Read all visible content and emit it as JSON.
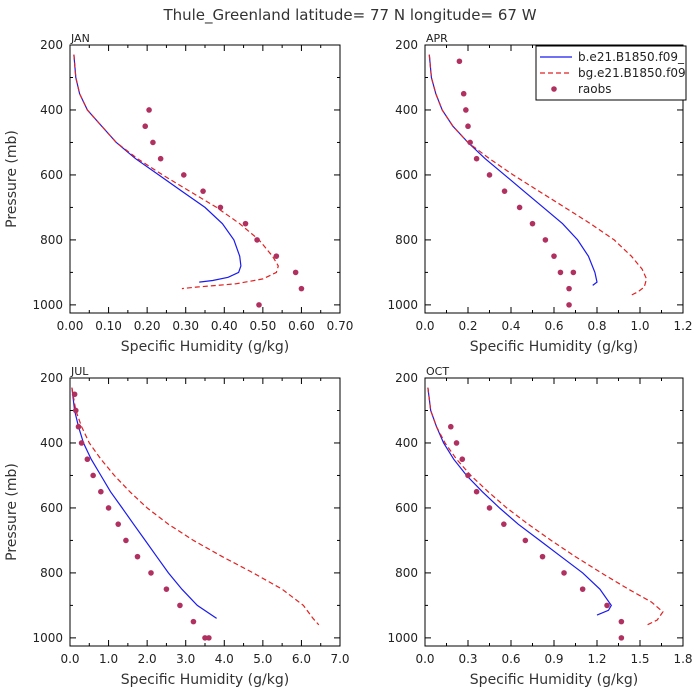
{
  "title": "Thule_Greenland  latitude= 77 N longitude= 67 W",
  "colors": {
    "model1": "#1a1aee",
    "model2": "#e22020",
    "obs": "#b03060"
  },
  "legend": [
    {
      "label": "b.e21.B1850.f09_",
      "style": "solid",
      "color": "#1a1aee"
    },
    {
      "label": "bg.e21.B1850.f09",
      "style": "dashed",
      "color": "#e22020"
    },
    {
      "label": "raobs",
      "style": "dot",
      "color": "#b03060"
    }
  ],
  "chart_data": [
    {
      "type": "line",
      "panel": "JAN",
      "xlabel": "Specific Humidity (g/kg)",
      "ylabel": "Pressure (mb)",
      "xlim": [
        0,
        0.7
      ],
      "xticks": [
        "0.00",
        "0.10",
        "0.20",
        "0.30",
        "0.40",
        "0.50",
        "0.60",
        "0.70"
      ],
      "ylim": [
        200,
        1025
      ],
      "yticks": [
        200,
        400,
        600,
        800,
        1000
      ],
      "y_inverted": true,
      "series": [
        {
          "x": [
            0.01,
            0.015,
            0.025,
            0.045,
            0.075,
            0.12,
            0.17,
            0.23,
            0.29,
            0.35,
            0.395,
            0.425,
            0.44,
            0.443,
            0.437,
            0.41,
            0.37,
            0.335
          ],
          "y": [
            230,
            300,
            350,
            400,
            440,
            500,
            550,
            600,
            650,
            700,
            750,
            800,
            850,
            880,
            900,
            915,
            925,
            930
          ]
        },
        {
          "x": [
            0.01,
            0.015,
            0.025,
            0.045,
            0.075,
            0.12,
            0.175,
            0.24,
            0.31,
            0.38,
            0.44,
            0.49,
            0.525,
            0.54,
            0.535,
            0.5,
            0.43,
            0.33,
            0.29
          ],
          "y": [
            230,
            300,
            350,
            400,
            440,
            500,
            550,
            600,
            650,
            700,
            750,
            800,
            850,
            880,
            900,
            920,
            935,
            945,
            950
          ]
        },
        {
          "points": true,
          "x": [
            0.205,
            0.195,
            0.215,
            0.235,
            0.295,
            0.345,
            0.39,
            0.455,
            0.485,
            0.535,
            0.585,
            0.6,
            0.49
          ],
          "y": [
            400,
            450,
            500,
            550,
            600,
            650,
            700,
            750,
            800,
            850,
            900,
            950,
            1000
          ]
        }
      ]
    },
    {
      "type": "line",
      "panel": "APR",
      "xlabel": "Specific Humidity (g/kg)",
      "ylabel": "",
      "xlim": [
        0,
        1.2
      ],
      "xticks": [
        "0.0",
        "0.2",
        "0.4",
        "0.6",
        "0.8",
        "1.0",
        "1.2"
      ],
      "ylim": [
        200,
        1025
      ],
      "yticks": [
        200,
        400,
        600,
        800,
        1000
      ],
      "y_inverted": true,
      "series": [
        {
          "x": [
            0.02,
            0.03,
            0.05,
            0.08,
            0.13,
            0.2,
            0.28,
            0.37,
            0.46,
            0.55,
            0.64,
            0.71,
            0.76,
            0.79,
            0.8,
            0.78
          ],
          "y": [
            230,
            300,
            350,
            400,
            450,
            500,
            550,
            600,
            650,
            700,
            750,
            800,
            850,
            900,
            930,
            940
          ]
        },
        {
          "x": [
            0.02,
            0.03,
            0.05,
            0.08,
            0.13,
            0.2,
            0.3,
            0.41,
            0.53,
            0.65,
            0.77,
            0.88,
            0.96,
            1.01,
            1.03,
            1.02,
            0.99,
            0.96
          ],
          "y": [
            230,
            300,
            350,
            400,
            450,
            500,
            550,
            600,
            650,
            700,
            750,
            800,
            850,
            890,
            920,
            945,
            960,
            970
          ]
        },
        {
          "points": true,
          "x": [
            0.16,
            0.18,
            0.19,
            0.2,
            0.21,
            0.24,
            0.3,
            0.37,
            0.44,
            0.5,
            0.56,
            0.6,
            0.63,
            0.67,
            0.69,
            0.67
          ],
          "y": [
            250,
            350,
            400,
            450,
            500,
            550,
            600,
            650,
            700,
            750,
            800,
            850,
            900,
            950,
            900,
            1000
          ]
        }
      ]
    },
    {
      "type": "line",
      "panel": "JUL",
      "xlabel": "Specific Humidity (g/kg)",
      "ylabel": "Pressure (mb)",
      "xlim": [
        0,
        7.0
      ],
      "xticks": [
        "0.0",
        "1.0",
        "2.0",
        "3.0",
        "4.0",
        "5.0",
        "6.0",
        "7.0"
      ],
      "ylim": [
        200,
        1025
      ],
      "yticks": [
        200,
        400,
        600,
        800,
        1000
      ],
      "y_inverted": true,
      "series": [
        {
          "x": [
            0.05,
            0.12,
            0.22,
            0.35,
            0.55,
            0.8,
            1.05,
            1.35,
            1.65,
            1.95,
            2.25,
            2.55,
            2.9,
            3.3,
            3.8
          ],
          "y": [
            230,
            300,
            350,
            400,
            450,
            500,
            550,
            600,
            650,
            700,
            750,
            800,
            850,
            900,
            940
          ]
        },
        {
          "x": [
            0.05,
            0.15,
            0.3,
            0.5,
            0.8,
            1.15,
            1.55,
            2.0,
            2.55,
            3.2,
            3.95,
            4.75,
            5.5,
            6.05,
            6.3,
            6.45
          ],
          "y": [
            230,
            300,
            350,
            400,
            450,
            500,
            550,
            600,
            650,
            700,
            750,
            800,
            850,
            900,
            940,
            960
          ]
        },
        {
          "points": true,
          "x": [
            0.12,
            0.15,
            0.22,
            0.3,
            0.45,
            0.6,
            0.8,
            1.0,
            1.25,
            1.45,
            1.75,
            2.1,
            2.5,
            2.85,
            3.2,
            3.5,
            3.6
          ],
          "y": [
            250,
            300,
            350,
            400,
            450,
            500,
            550,
            600,
            650,
            700,
            750,
            800,
            850,
            900,
            950,
            1000,
            1000
          ]
        }
      ]
    },
    {
      "type": "line",
      "panel": "OCT",
      "xlabel": "Specific Humidity (g/kg)",
      "ylabel": "",
      "xlim": [
        0,
        1.8
      ],
      "xticks": [
        "0.0",
        "0.3",
        "0.6",
        "0.9",
        "1.2",
        "1.5",
        "1.8"
      ],
      "ylim": [
        200,
        1025
      ],
      "yticks": [
        200,
        400,
        600,
        800,
        1000
      ],
      "y_inverted": true,
      "series": [
        {
          "x": [
            0.02,
            0.04,
            0.08,
            0.13,
            0.2,
            0.29,
            0.4,
            0.52,
            0.65,
            0.8,
            0.95,
            1.1,
            1.22,
            1.3,
            1.28,
            1.2
          ],
          "y": [
            230,
            300,
            350,
            400,
            450,
            500,
            550,
            600,
            650,
            700,
            750,
            800,
            850,
            900,
            915,
            930
          ]
        },
        {
          "x": [
            0.02,
            0.04,
            0.08,
            0.14,
            0.22,
            0.32,
            0.44,
            0.57,
            0.72,
            0.88,
            1.05,
            1.23,
            1.42,
            1.58,
            1.66,
            1.62,
            1.55
          ],
          "y": [
            230,
            300,
            350,
            400,
            450,
            500,
            550,
            600,
            650,
            700,
            750,
            800,
            850,
            890,
            920,
            945,
            960
          ]
        },
        {
          "points": true,
          "x": [
            0.18,
            0.22,
            0.26,
            0.3,
            0.36,
            0.45,
            0.55,
            0.7,
            0.82,
            0.97,
            1.1,
            1.27,
            1.37,
            1.37
          ],
          "y": [
            350,
            400,
            450,
            500,
            550,
            600,
            650,
            700,
            750,
            800,
            850,
            900,
            950,
            1000
          ]
        }
      ]
    }
  ]
}
